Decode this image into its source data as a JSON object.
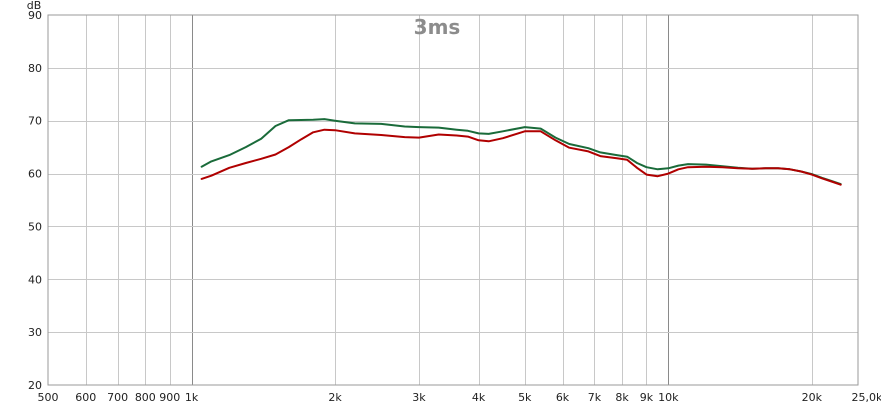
{
  "chart_data": {
    "type": "line",
    "title": "3ms",
    "ylabel": "dB",
    "xlabel": "",
    "x_scale": "log",
    "xlim": [
      500,
      25000
    ],
    "ylim": [
      20,
      90
    ],
    "grid": true,
    "y_ticks": [
      20,
      30,
      40,
      50,
      60,
      70,
      80,
      90
    ],
    "x_ticks": [
      {
        "value": 500,
        "label": "500"
      },
      {
        "value": 600,
        "label": "600"
      },
      {
        "value": 700,
        "label": "700"
      },
      {
        "value": 800,
        "label": "800"
      },
      {
        "value": 900,
        "label": "900"
      },
      {
        "value": 1000,
        "label": "1k"
      },
      {
        "value": 2000,
        "label": "2k"
      },
      {
        "value": 3000,
        "label": "3k"
      },
      {
        "value": 4000,
        "label": "4k"
      },
      {
        "value": 5000,
        "label": "5k"
      },
      {
        "value": 6000,
        "label": "6k"
      },
      {
        "value": 7000,
        "label": "7k"
      },
      {
        "value": 8000,
        "label": "8k"
      },
      {
        "value": 9000,
        "label": "9k"
      },
      {
        "value": 10000,
        "label": "10k"
      },
      {
        "value": 20000,
        "label": "20k"
      },
      {
        "value": 25000,
        "label": "25,0kHz"
      }
    ],
    "series": [
      {
        "color": "#1a6b3a",
        "points": [
          [
            1050,
            61.3
          ],
          [
            1100,
            62.3
          ],
          [
            1200,
            63.5
          ],
          [
            1300,
            65.0
          ],
          [
            1400,
            66.6
          ],
          [
            1500,
            69.0
          ],
          [
            1600,
            70.1
          ],
          [
            1800,
            70.2
          ],
          [
            1900,
            70.3
          ],
          [
            2000,
            70.0
          ],
          [
            2200,
            69.5
          ],
          [
            2500,
            69.4
          ],
          [
            2800,
            68.9
          ],
          [
            3000,
            68.8
          ],
          [
            3300,
            68.7
          ],
          [
            3600,
            68.3
          ],
          [
            3800,
            68.1
          ],
          [
            4000,
            67.6
          ],
          [
            4200,
            67.5
          ],
          [
            4500,
            68.0
          ],
          [
            5000,
            68.8
          ],
          [
            5400,
            68.5
          ],
          [
            5800,
            66.8
          ],
          [
            6200,
            65.6
          ],
          [
            6800,
            64.8
          ],
          [
            7200,
            64.0
          ],
          [
            7800,
            63.5
          ],
          [
            8200,
            63.2
          ],
          [
            8600,
            62.0
          ],
          [
            9000,
            61.2
          ],
          [
            9500,
            60.8
          ],
          [
            10000,
            61.0
          ],
          [
            10500,
            61.5
          ],
          [
            11000,
            61.8
          ],
          [
            12000,
            61.7
          ],
          [
            13000,
            61.4
          ],
          [
            14000,
            61.1
          ],
          [
            15000,
            60.9
          ],
          [
            16000,
            61.0
          ],
          [
            17000,
            61.0
          ],
          [
            18000,
            60.8
          ],
          [
            19000,
            60.4
          ],
          [
            20000,
            59.9
          ],
          [
            21000,
            59.2
          ],
          [
            22000,
            58.6
          ],
          [
            23000,
            58.0
          ]
        ]
      },
      {
        "color": "#b00000",
        "points": [
          [
            1050,
            59.0
          ],
          [
            1100,
            59.6
          ],
          [
            1200,
            61.1
          ],
          [
            1300,
            62.0
          ],
          [
            1400,
            62.8
          ],
          [
            1500,
            63.6
          ],
          [
            1600,
            65.0
          ],
          [
            1700,
            66.5
          ],
          [
            1800,
            67.8
          ],
          [
            1900,
            68.3
          ],
          [
            2000,
            68.2
          ],
          [
            2200,
            67.6
          ],
          [
            2500,
            67.3
          ],
          [
            2800,
            66.9
          ],
          [
            3000,
            66.8
          ],
          [
            3300,
            67.4
          ],
          [
            3600,
            67.2
          ],
          [
            3800,
            67.0
          ],
          [
            4000,
            66.3
          ],
          [
            4200,
            66.1
          ],
          [
            4500,
            66.7
          ],
          [
            5000,
            68.0
          ],
          [
            5400,
            68.0
          ],
          [
            5800,
            66.3
          ],
          [
            6200,
            64.9
          ],
          [
            6800,
            64.2
          ],
          [
            7200,
            63.3
          ],
          [
            7800,
            62.9
          ],
          [
            8200,
            62.6
          ],
          [
            8600,
            61.1
          ],
          [
            9000,
            59.8
          ],
          [
            9500,
            59.5
          ],
          [
            10000,
            60.0
          ],
          [
            10500,
            60.8
          ],
          [
            11000,
            61.2
          ],
          [
            12000,
            61.3
          ],
          [
            13000,
            61.2
          ],
          [
            14000,
            61.0
          ],
          [
            15000,
            60.9
          ],
          [
            16000,
            61.0
          ],
          [
            17000,
            61.0
          ],
          [
            18000,
            60.8
          ],
          [
            19000,
            60.4
          ],
          [
            20000,
            59.8
          ],
          [
            21000,
            59.1
          ],
          [
            22000,
            58.5
          ],
          [
            23000,
            57.9
          ]
        ]
      }
    ]
  }
}
